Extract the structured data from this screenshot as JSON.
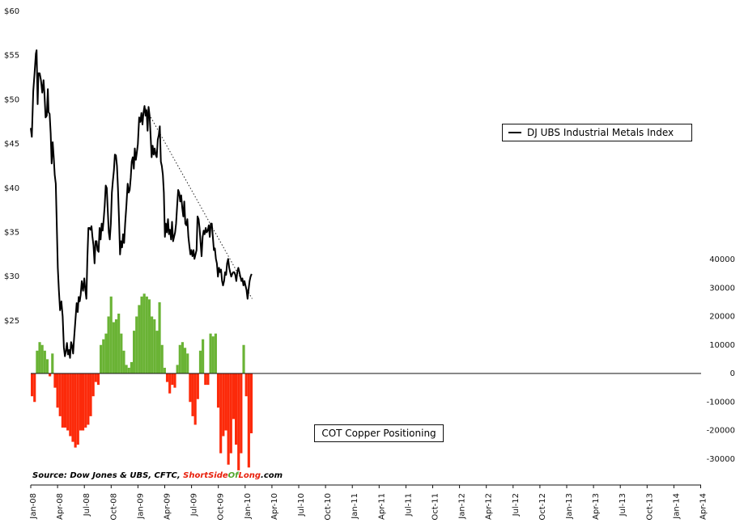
{
  "chart_data": {
    "type": "bar+line",
    "left_axis": {
      "ticks": [
        "$25",
        "$30",
        "$35",
        "$40",
        "$45",
        "$50",
        "$55",
        "$60"
      ],
      "values": [
        25,
        30,
        35,
        40,
        45,
        50,
        55,
        60
      ],
      "range": [
        13,
        60
      ]
    },
    "right_axis": {
      "ticks": [
        "-30000",
        "-20000",
        "-10000",
        "0",
        "10000",
        "20000",
        "30000",
        "40000"
      ],
      "values": [
        -30000,
        -20000,
        -10000,
        0,
        10000,
        20000,
        30000,
        40000
      ],
      "range": [
        -35000,
        40000
      ]
    },
    "x_ticks": [
      "Jan-08",
      "Apr-08",
      "Jul-08",
      "Oct-08",
      "Jan-09",
      "Apr-09",
      "Jul-09",
      "Oct-09",
      "Jan-10",
      "Apr-10",
      "Jul-10",
      "Oct-10",
      "Jan-11",
      "Apr-11",
      "Jul-11",
      "Oct-11",
      "Jan-12",
      "Apr-12",
      "Jul-12",
      "Oct-12",
      "Jan-13",
      "Apr-13",
      "Jul-13",
      "Oct-13",
      "Jan-14",
      "Apr-14"
    ],
    "series": [
      {
        "name": "DJ UBS Industrial Metals Index",
        "axis": "left",
        "style": "line",
        "color": "#000000",
        "points": [
          [
            0,
            46.8
          ],
          [
            0.4,
            45.8
          ],
          [
            1,
            51
          ],
          [
            1.5,
            53
          ],
          [
            2,
            55.2
          ],
          [
            2.3,
            55.6
          ],
          [
            2.7,
            49.5
          ],
          [
            3,
            53
          ],
          [
            3.5,
            53
          ],
          [
            4,
            52.2
          ],
          [
            4.5,
            50.8
          ],
          [
            5,
            52.2
          ],
          [
            5.4,
            50.5
          ],
          [
            5.8,
            48
          ],
          [
            6.3,
            48.2
          ],
          [
            6.7,
            51.2
          ],
          [
            7,
            48.6
          ],
          [
            7.4,
            48.4
          ],
          [
            7.8,
            46.2
          ],
          [
            8.2,
            42.8
          ],
          [
            8.6,
            45.2
          ],
          [
            9,
            43.6
          ],
          [
            9.4,
            41.5
          ],
          [
            9.8,
            40.5
          ],
          [
            10.2,
            36
          ],
          [
            10.6,
            31
          ],
          [
            11,
            28.5
          ],
          [
            11.5,
            26.2
          ],
          [
            12,
            27.2
          ],
          [
            12.5,
            25.5
          ],
          [
            13,
            22
          ],
          [
            13.4,
            21
          ],
          [
            13.8,
            21.6
          ],
          [
            14.2,
            22.5
          ],
          [
            14.6,
            21.2
          ],
          [
            15,
            21.7
          ],
          [
            15.4,
            20.8
          ],
          [
            15.8,
            22.6
          ],
          [
            16.2,
            22.2
          ],
          [
            16.6,
            21.3
          ],
          [
            17,
            23
          ],
          [
            17.5,
            25
          ],
          [
            18,
            27
          ],
          [
            18.4,
            26
          ],
          [
            18.8,
            27.7
          ],
          [
            19.2,
            27.2
          ],
          [
            19.6,
            28
          ],
          [
            20,
            29.5
          ],
          [
            20.5,
            28.4
          ],
          [
            21,
            29.8
          ],
          [
            21.4,
            28.5
          ],
          [
            21.8,
            27.5
          ],
          [
            22.2,
            32
          ],
          [
            22.6,
            35.5
          ],
          [
            23,
            35.5
          ],
          [
            23.4,
            35.3
          ],
          [
            23.8,
            35.7
          ],
          [
            24.2,
            34.5
          ],
          [
            24.6,
            33.5
          ],
          [
            25,
            31.5
          ],
          [
            25.4,
            34
          ],
          [
            25.8,
            34
          ],
          [
            26.2,
            33
          ],
          [
            26.6,
            32.8
          ],
          [
            27,
            35.5
          ],
          [
            27.4,
            34.2
          ],
          [
            27.8,
            36
          ],
          [
            28.2,
            35.2
          ],
          [
            28.6,
            36.5
          ],
          [
            29,
            38
          ],
          [
            29.4,
            40.3
          ],
          [
            29.8,
            40
          ],
          [
            30.2,
            37.5
          ],
          [
            30.6,
            35
          ],
          [
            31,
            34.2
          ],
          [
            31.4,
            36
          ],
          [
            31.8,
            39.5
          ],
          [
            32.2,
            40.8
          ],
          [
            32.6,
            42
          ],
          [
            33,
            43.8
          ],
          [
            33.4,
            43.7
          ],
          [
            33.8,
            42.5
          ],
          [
            34.2,
            40
          ],
          [
            34.6,
            36.5
          ],
          [
            35,
            32.5
          ],
          [
            35.4,
            34
          ],
          [
            35.8,
            33.3
          ],
          [
            36.2,
            34.8
          ],
          [
            36.6,
            33.8
          ],
          [
            37,
            36
          ],
          [
            37.5,
            38
          ],
          [
            38,
            40.5
          ],
          [
            38.4,
            39.5
          ],
          [
            38.8,
            39.8
          ],
          [
            39.2,
            41.2
          ],
          [
            39.6,
            43
          ],
          [
            40,
            43.5
          ],
          [
            40.4,
            42.2
          ],
          [
            40.8,
            44.5
          ],
          [
            41.2,
            43.2
          ],
          [
            41.6,
            44
          ],
          [
            42,
            45
          ],
          [
            42.5,
            48
          ],
          [
            43,
            47.5
          ],
          [
            43.4,
            48.5
          ],
          [
            43.8,
            47.2
          ],
          [
            44.2,
            48.5
          ],
          [
            44.6,
            49.3
          ],
          [
            45,
            48.2
          ],
          [
            45.4,
            48.8
          ],
          [
            45.8,
            46.5
          ],
          [
            46.2,
            49.2
          ],
          [
            46.6,
            48.2
          ],
          [
            47,
            46
          ],
          [
            47.4,
            43.5
          ],
          [
            47.8,
            44.8
          ],
          [
            48.2,
            43.8
          ],
          [
            48.6,
            44.5
          ],
          [
            49,
            43.8
          ],
          [
            49.4,
            43.5
          ],
          [
            49.8,
            45.5
          ],
          [
            50.2,
            46
          ],
          [
            50.6,
            47
          ],
          [
            51,
            43
          ],
          [
            51.4,
            42.5
          ],
          [
            51.8,
            41.5
          ],
          [
            52.2,
            39.5
          ],
          [
            52.6,
            34.5
          ],
          [
            53,
            36
          ],
          [
            53.4,
            35
          ],
          [
            53.8,
            36.5
          ],
          [
            54.2,
            34.8
          ],
          [
            54.6,
            35.3
          ],
          [
            55,
            34.2
          ],
          [
            55.4,
            36.2
          ],
          [
            55.8,
            34
          ],
          [
            56.2,
            34.5
          ],
          [
            56.6,
            35
          ],
          [
            57,
            36
          ],
          [
            57.4,
            38
          ],
          [
            57.8,
            39.8
          ],
          [
            58.2,
            39.5
          ],
          [
            58.6,
            38.5
          ],
          [
            59,
            39.2
          ],
          [
            59.4,
            37.8
          ],
          [
            59.8,
            36.8
          ],
          [
            60.2,
            38.5
          ],
          [
            60.6,
            36
          ],
          [
            61,
            35.8
          ],
          [
            61.4,
            36.5
          ],
          [
            61.8,
            34.5
          ],
          [
            62.2,
            33.5
          ],
          [
            62.6,
            32.5
          ],
          [
            63,
            33
          ],
          [
            63.4,
            32.3
          ],
          [
            63.8,
            33
          ],
          [
            64.2,
            32
          ],
          [
            64.6,
            32.5
          ],
          [
            65,
            33
          ],
          [
            65.4,
            36.8
          ],
          [
            65.8,
            36.5
          ],
          [
            66.2,
            35.5
          ],
          [
            66.6,
            33.8
          ],
          [
            67,
            32.3
          ],
          [
            67.4,
            34.5
          ],
          [
            67.8,
            35.2
          ],
          [
            68.2,
            34.8
          ],
          [
            68.6,
            35.5
          ],
          [
            69,
            35
          ],
          [
            69.4,
            35.2
          ],
          [
            69.8,
            35.8
          ],
          [
            70.2,
            34.5
          ],
          [
            70.6,
            36
          ],
          [
            71,
            36
          ],
          [
            71.4,
            34.5
          ],
          [
            71.8,
            33
          ],
          [
            72.2,
            33.2
          ],
          [
            72.6,
            32
          ],
          [
            73,
            31.5
          ],
          [
            73.4,
            30
          ],
          [
            73.8,
            31
          ],
          [
            74.2,
            30.5
          ],
          [
            74.6,
            30.8
          ],
          [
            75,
            29.5
          ],
          [
            75.4,
            29
          ],
          [
            75.8,
            29.5
          ],
          [
            76.2,
            30.5
          ],
          [
            76.6,
            30.2
          ],
          [
            77,
            31.5
          ],
          [
            77.4,
            32
          ],
          [
            77.8,
            31
          ],
          [
            78.2,
            30.5
          ],
          [
            78.6,
            30
          ],
          [
            79,
            30.3
          ],
          [
            79.4,
            30.5
          ],
          [
            79.8,
            30.5
          ],
          [
            80.2,
            30.2
          ],
          [
            80.6,
            29.5
          ],
          [
            81,
            30.5
          ],
          [
            81.4,
            31
          ],
          [
            81.8,
            30.5
          ],
          [
            82.2,
            30
          ],
          [
            82.6,
            29.5
          ],
          [
            83,
            29.8
          ],
          [
            83.4,
            29
          ],
          [
            83.8,
            29.5
          ],
          [
            84.2,
            29
          ],
          [
            84.6,
            28.5
          ],
          [
            85,
            27.5
          ],
          [
            85.4,
            28.5
          ],
          [
            85.8,
            29.5
          ],
          [
            86.2,
            30
          ],
          [
            86.6,
            30.3
          ]
        ]
      },
      {
        "name": "COT Copper Positioning",
        "axis": "right",
        "style": "bar",
        "positive_color": "#6ab335",
        "negative_color": "#fc2a0a",
        "points": [
          [
            0,
            -8000
          ],
          [
            1,
            -10000
          ],
          [
            2,
            8000
          ],
          [
            3,
            11000
          ],
          [
            4,
            10000
          ],
          [
            5,
            8000
          ],
          [
            6,
            5000
          ],
          [
            7,
            -1000
          ],
          [
            8,
            7000
          ],
          [
            9,
            -5000
          ],
          [
            10,
            -12000
          ],
          [
            11,
            -15000
          ],
          [
            12,
            -19000
          ],
          [
            13,
            -19000
          ],
          [
            14,
            -20000
          ],
          [
            15,
            -22000
          ],
          [
            16,
            -24000
          ],
          [
            17,
            -26000
          ],
          [
            18,
            -25000
          ],
          [
            19,
            -20000
          ],
          [
            20,
            -20000
          ],
          [
            21,
            -19000
          ],
          [
            22,
            -18000
          ],
          [
            23,
            -15000
          ],
          [
            24,
            -8000
          ],
          [
            25,
            -3000
          ],
          [
            26,
            -4000
          ],
          [
            27,
            10000
          ],
          [
            28,
            12000
          ],
          [
            29,
            14000
          ],
          [
            30,
            20000
          ],
          [
            31,
            27000
          ],
          [
            32,
            18000
          ],
          [
            33,
            19000
          ],
          [
            34,
            21000
          ],
          [
            35,
            14000
          ],
          [
            36,
            8000
          ],
          [
            37,
            3000
          ],
          [
            38,
            2000
          ],
          [
            39,
            4000
          ],
          [
            40,
            15000
          ],
          [
            41,
            20000
          ],
          [
            42,
            24000
          ],
          [
            43,
            27000
          ],
          [
            44,
            28000
          ],
          [
            45,
            27000
          ],
          [
            46,
            26000
          ],
          [
            47,
            20000
          ],
          [
            48,
            19000
          ],
          [
            49,
            15000
          ],
          [
            50,
            25000
          ],
          [
            51,
            10000
          ],
          [
            52,
            2000
          ],
          [
            53,
            -3000
          ],
          [
            54,
            -7000
          ],
          [
            55,
            -4000
          ],
          [
            56,
            -5000
          ],
          [
            57,
            3000
          ],
          [
            58,
            10000
          ],
          [
            59,
            11000
          ],
          [
            60,
            9000
          ],
          [
            61,
            7000
          ],
          [
            62,
            -10000
          ],
          [
            63,
            -15000
          ],
          [
            64,
            -18000
          ],
          [
            65,
            -9000
          ],
          [
            66,
            8000
          ],
          [
            67,
            12000
          ],
          [
            68,
            -4000
          ],
          [
            69,
            -4000
          ],
          [
            70,
            14000
          ],
          [
            71,
            13000
          ],
          [
            72,
            14000
          ],
          [
            73,
            -12000
          ],
          [
            74,
            -28000
          ],
          [
            75,
            -22000
          ],
          [
            76,
            -20000
          ],
          [
            77,
            -32000
          ],
          [
            78,
            -28000
          ],
          [
            79,
            -16000
          ],
          [
            80,
            -25000
          ],
          [
            81,
            -34000
          ],
          [
            82,
            -28000
          ],
          [
            83,
            10000
          ],
          [
            84,
            -8000
          ],
          [
            85,
            -33000
          ],
          [
            86,
            -21000
          ]
        ]
      }
    ],
    "annotations": [
      "COT Copper Positioning"
    ],
    "trendline": {
      "from": [
        44.6,
        49.3
      ],
      "to": [
        86.8,
        27.5
      ],
      "axis": "left",
      "style": "dotted"
    },
    "grid": false,
    "legend": {
      "entries": [
        "DJ UBS Industrial Metals Index"
      ],
      "placement": "top-right"
    }
  },
  "source": {
    "prefix": "Source: Dow Jones & UBS, CFTC, ",
    "brand_part1": "ShortSide",
    "brand_part2": "Of",
    "brand_part3": "Long",
    "suffix": ".com"
  }
}
